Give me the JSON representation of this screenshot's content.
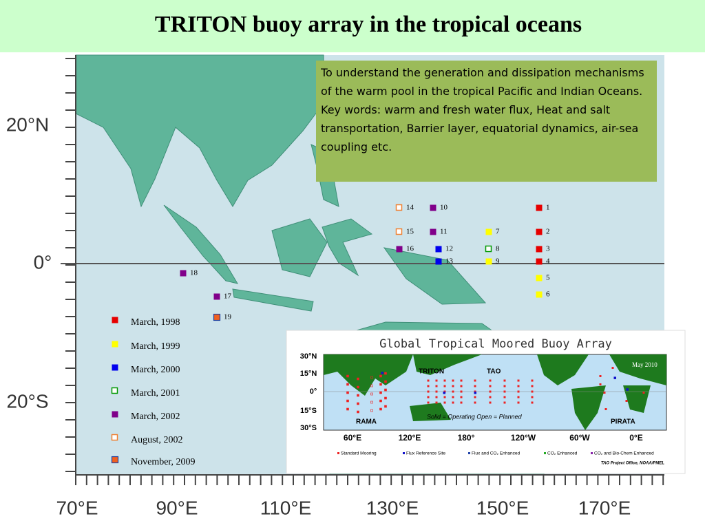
{
  "header": {
    "title": "TRITON buoy array in the tropical oceans"
  },
  "description": {
    "paragraphs": [
      "To understand the generation and dissipation mechanisms of the warm pool in the tropical Pacific and Indian Oceans.",
      "Key words:  warm and fresh water flux, Heat and salt transportation, Barrier layer, equatorial dynamics, air-sea coupling etc."
    ]
  },
  "map": {
    "lat_labels": [
      "20°N",
      "0°",
      "20°S"
    ],
    "lon_labels": [
      "70°E",
      "90°E",
      "110°E",
      "130°E",
      "150°E",
      "170°E"
    ]
  },
  "legend": {
    "items": [
      {
        "label": "March, 1998",
        "color": "#e60000",
        "marker": "filled",
        "buoys": [
          "1",
          "2",
          "3",
          "4"
        ]
      },
      {
        "label": "March, 1999",
        "color": "#ffff00",
        "marker": "filled",
        "buoys": [
          "5",
          "6",
          "7",
          "9"
        ]
      },
      {
        "label": "March, 2000",
        "color": "#0000ee",
        "marker": "filled",
        "buoys": [
          "12",
          "13"
        ]
      },
      {
        "label": "March, 2001",
        "color": "#009900",
        "marker": "open",
        "buoys": [
          "8"
        ]
      },
      {
        "label": "March, 2002",
        "color": "#80008a",
        "marker": "filled",
        "buoys": [
          "10",
          "11",
          "16",
          "17",
          "18"
        ]
      },
      {
        "label": "August, 2002",
        "color": "#f08030",
        "marker": "open",
        "buoys": [
          "14",
          "15"
        ]
      },
      {
        "label": "November, 2009",
        "color": "#f06020",
        "marker": "filled-outlined",
        "buoys": [
          "19"
        ]
      }
    ]
  },
  "inset": {
    "title": "Global Tropical Moored Buoy Array",
    "lat_labels": [
      "30°N",
      "15°N",
      "0°",
      "15°S",
      "30°S"
    ],
    "lon_labels": [
      "60°E",
      "120°E",
      "180°",
      "120°W",
      "60°W",
      "0°E"
    ],
    "region_labels": [
      "TRITON",
      "TAO",
      "RAMA",
      "PIRATA"
    ],
    "date": "May 2010",
    "note": "Solid = Operating    Open = Planned",
    "legend": [
      "Standard Mooring",
      "Flux Reference Site",
      "Flux and CO₂ Enhanced",
      "CO₂ Enhanced",
      "CO₂ and Bio-Chem Enhanced"
    ],
    "credit": "TAO Project Office, NOAA/PMEL"
  }
}
